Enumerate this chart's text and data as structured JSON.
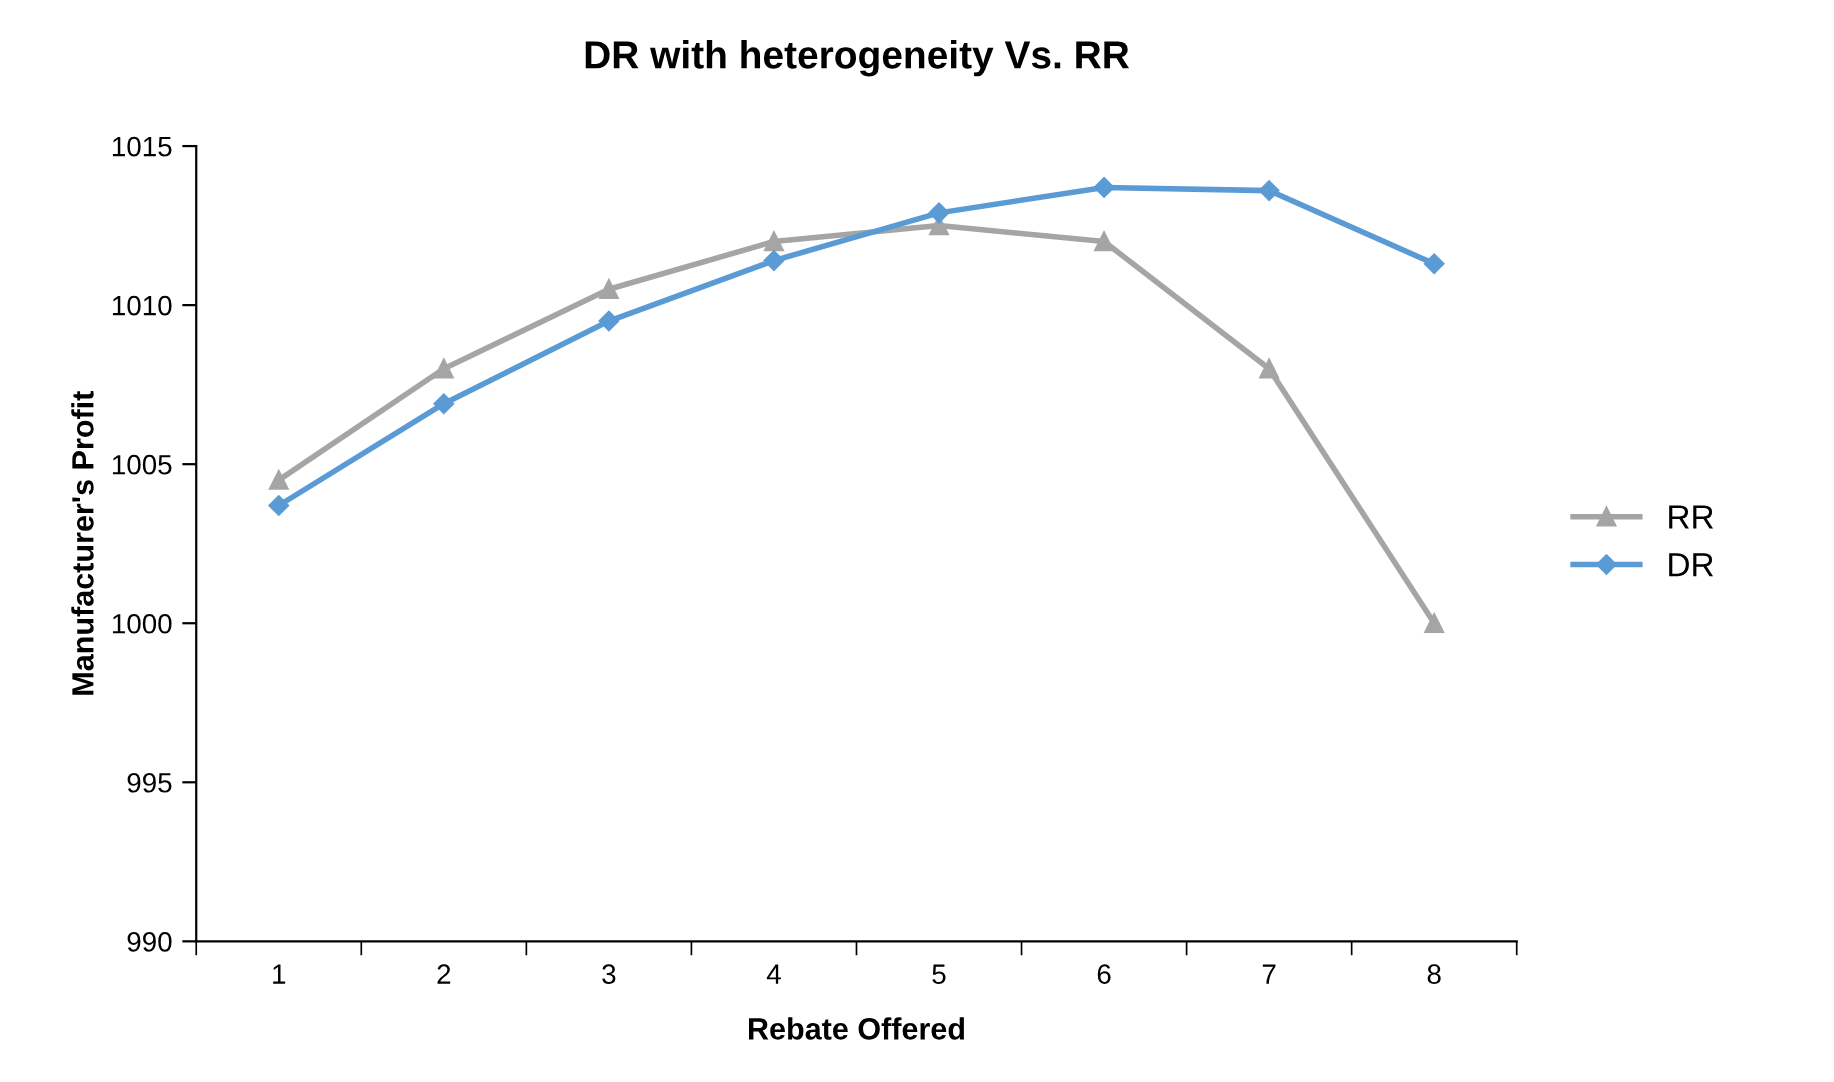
{
  "chart_data": {
    "type": "line",
    "title": "DR with heterogeneity Vs. RR",
    "xlabel": "Rebate Offered",
    "ylabel": "Manufacturer's Profit",
    "categories": [
      "1",
      "2",
      "3",
      "4",
      "5",
      "6",
      "7",
      "8"
    ],
    "series": [
      {
        "name": "RR",
        "color": "#a5a5a5",
        "marker": "triangle",
        "values": [
          1004.5,
          1008.0,
          1010.5,
          1012.0,
          1012.5,
          1012.0,
          1008.0,
          1000.0
        ]
      },
      {
        "name": "DR",
        "color": "#5b9bd5",
        "marker": "diamond",
        "values": [
          1003.7,
          1006.9,
          1009.5,
          1011.4,
          1012.9,
          1013.7,
          1013.6,
          1011.3
        ]
      }
    ],
    "ylim": [
      990,
      1015
    ],
    "yticks": [
      990,
      995,
      1000,
      1005,
      1010,
      1015
    ],
    "grid": false,
    "legend": "right"
  }
}
